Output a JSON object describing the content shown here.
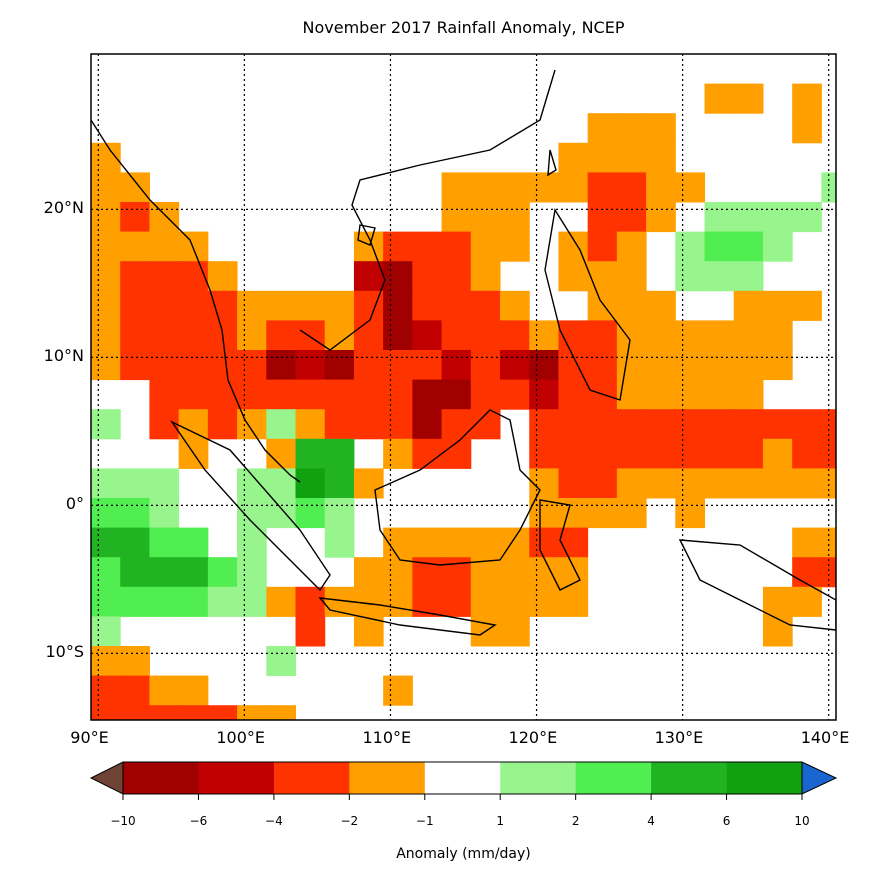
{
  "title": "November 2017 Rainfall Anomaly, NCEP",
  "map": {
    "lon_range": [
      89.5,
      140.5
    ],
    "lat_range": [
      -14.5,
      30.5
    ],
    "lon_ticks": [
      {
        "value": 90,
        "label": "90°E"
      },
      {
        "value": 100,
        "label": "100°E"
      },
      {
        "value": 110,
        "label": "110°E"
      },
      {
        "value": 120,
        "label": "120°E"
      },
      {
        "value": 130,
        "label": "130°E"
      },
      {
        "value": 140,
        "label": "140°E"
      }
    ],
    "lat_ticks": [
      {
        "value": 20,
        "label": "20°N"
      },
      {
        "value": 10,
        "label": "10°N"
      },
      {
        "value": 0,
        "label": "0°"
      },
      {
        "value": -10,
        "label": "10°S"
      }
    ],
    "gridlines": "dotted",
    "cell_degrees": 2,
    "category_colors": {
      "D": "#a00000",
      "R": "#c00000",
      "r": "#ff3300",
      "o": "#ff9f00",
      ".": "#ffffff",
      "l": "#98f58d",
      "g": "#50ee50",
      "G": "#22b322",
      "K": "#10a010"
    },
    "anomaly_grid": [
      "..........................",
      ".....................oo.o.",
      ".................ooo....o.",
      "o...............oooo......",
      "oo..........ooooorroo....l",
      "oro.........ooo..rro.llll.",
      "oooo.....orrroo.oro.lggl..",
      "orrro....RDrro..ooo.lll...",
      "orrrroooorDrrro..ooo..ooo.",
      "orrrrorrorDRrrrorroooooo..",
      "orrrrrDRDrrrRrRDrroooooo..",
      "..rrrrrrrrrDDrrRrrooooo...",
      "l.rorolorrrDrr.rrrrrrrrrrr",
      "...o..oGG.orr..rrrrrrrrorr",
      "lll..llKGo.....orroooooooo",
      "ggl..llgl......oooo.o.....",
      "GGgg.l..l.ooooorr.......oo",
      "gGGGgl...oorroooo.......rr",
      "ggggllorooorroooo......oo.",
      "l......r.o...oo........o..",
      "oo....l...................",
      "rroo......o...............",
      "rrrrroo..................."
    ]
  },
  "colorbar": {
    "label": "Anomaly (mm/day)",
    "ticks": [
      "−10",
      "−6",
      "−4",
      "−2",
      "−1",
      "1",
      "2",
      "4",
      "6",
      "10"
    ],
    "colors": [
      "#a00000",
      "#c00000",
      "#ff3300",
      "#ff9f00",
      "#ffffff",
      "#98f58d",
      "#50ee50",
      "#22b322",
      "#10a010"
    ],
    "under_color": "#6e4535",
    "over_color": "#1a66d0"
  }
}
